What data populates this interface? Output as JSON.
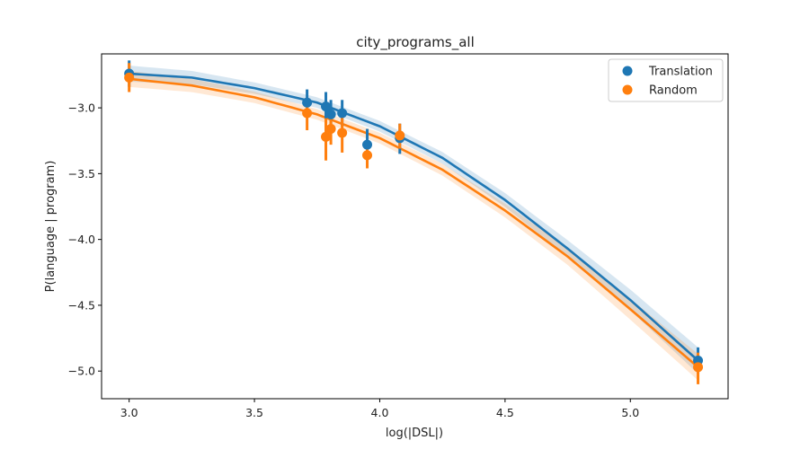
{
  "chart_data": {
    "type": "scatter",
    "title": "city_programs_all",
    "xlabel": "log(|DSL|)",
    "ylabel": "P(language | program)",
    "xlim": [
      2.89,
      5.39
    ],
    "ylim": [
      -5.21,
      -2.59
    ],
    "xticks": [
      3.0,
      3.5,
      4.0,
      4.5,
      5.0
    ],
    "xtick_labels": [
      "3.0",
      "3.5",
      "4.0",
      "4.5",
      "5.0"
    ],
    "yticks": [
      -3.0,
      -3.5,
      -4.0,
      -4.5,
      -5.0
    ],
    "ytick_labels": [
      "−3.0",
      "−3.5",
      "−4.0",
      "−4.5",
      "−5.0"
    ],
    "grid": false,
    "legend": "top-right",
    "series": [
      {
        "name": "Translation",
        "color": "#1f77b4",
        "points": [
          {
            "x": 3.0,
            "y": -2.74,
            "lo": -2.84,
            "hi": -2.64
          },
          {
            "x": 3.71,
            "y": -2.96,
            "lo": -3.06,
            "hi": -2.86
          },
          {
            "x": 3.785,
            "y": -2.99,
            "lo": -3.08,
            "hi": -2.88
          },
          {
            "x": 3.805,
            "y": -3.05,
            "lo": -3.15,
            "hi": -2.94
          },
          {
            "x": 3.85,
            "y": -3.04,
            "lo": -3.14,
            "hi": -2.94
          },
          {
            "x": 3.95,
            "y": -3.28,
            "lo": -3.39,
            "hi": -3.16
          },
          {
            "x": 4.08,
            "y": -3.23,
            "lo": -3.35,
            "hi": -3.12
          },
          {
            "x": 5.27,
            "y": -4.92,
            "lo": -5.02,
            "hi": -4.82
          }
        ],
        "fit": [
          {
            "x": 3.0,
            "y": -2.74
          },
          {
            "x": 3.25,
            "y": -2.77
          },
          {
            "x": 3.5,
            "y": -2.85
          },
          {
            "x": 3.75,
            "y": -2.96
          },
          {
            "x": 4.0,
            "y": -3.14
          },
          {
            "x": 4.25,
            "y": -3.38
          },
          {
            "x": 4.5,
            "y": -3.7
          },
          {
            "x": 4.75,
            "y": -4.07
          },
          {
            "x": 5.0,
            "y": -4.46
          },
          {
            "x": 5.27,
            "y": -4.92
          }
        ]
      },
      {
        "name": "Random",
        "color": "#ff7f0e",
        "points": [
          {
            "x": 3.0,
            "y": -2.77,
            "lo": -2.88,
            "hi": -2.66
          },
          {
            "x": 3.71,
            "y": -3.04,
            "lo": -3.17,
            "hi": -2.93
          },
          {
            "x": 3.785,
            "y": -3.22,
            "lo": -3.4,
            "hi": -3.08
          },
          {
            "x": 3.805,
            "y": -3.16,
            "lo": -3.28,
            "hi": -3.03
          },
          {
            "x": 3.85,
            "y": -3.19,
            "lo": -3.34,
            "hi": -3.06
          },
          {
            "x": 3.95,
            "y": -3.36,
            "lo": -3.46,
            "hi": -3.25
          },
          {
            "x": 4.08,
            "y": -3.21,
            "lo": -3.31,
            "hi": -3.12
          },
          {
            "x": 5.27,
            "y": -4.97,
            "lo": -5.1,
            "hi": -4.86
          }
        ],
        "fit": [
          {
            "x": 3.0,
            "y": -2.78
          },
          {
            "x": 3.25,
            "y": -2.83
          },
          {
            "x": 3.5,
            "y": -2.92
          },
          {
            "x": 3.75,
            "y": -3.05
          },
          {
            "x": 4.0,
            "y": -3.23
          },
          {
            "x": 4.25,
            "y": -3.47
          },
          {
            "x": 4.5,
            "y": -3.78
          },
          {
            "x": 4.75,
            "y": -4.13
          },
          {
            "x": 5.0,
            "y": -4.53
          },
          {
            "x": 5.27,
            "y": -4.97
          }
        ]
      }
    ]
  }
}
